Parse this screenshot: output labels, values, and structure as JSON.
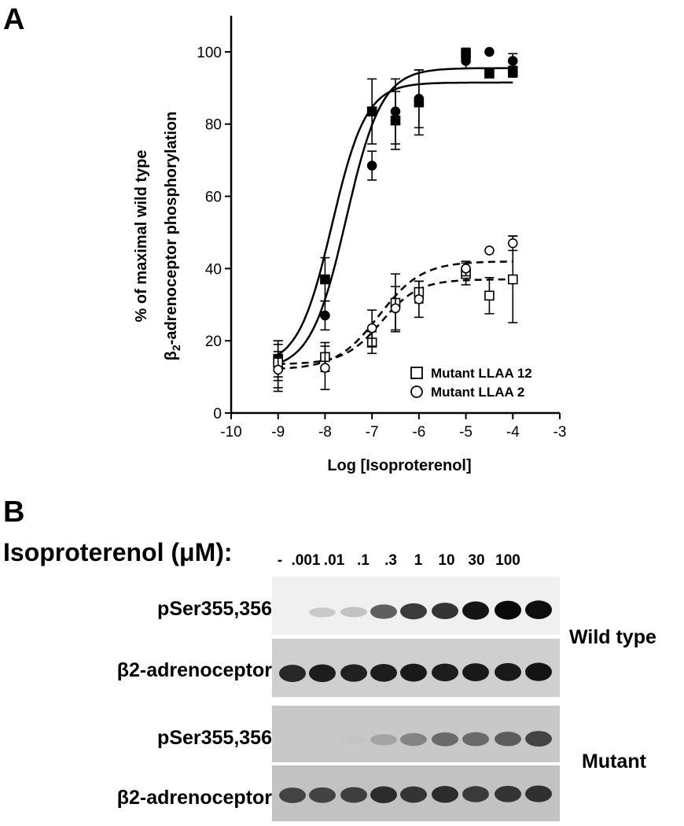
{
  "panel_a": {
    "letter": "A"
  },
  "panel_b": {
    "letter": "B",
    "title": "Isoproterenol (μM):",
    "concentrations": [
      "-",
      ".001",
      ".01",
      ".1",
      ".3",
      "1",
      "10",
      "30",
      "100"
    ],
    "rows": [
      {
        "label": "pSer355,356",
        "group": "wild-type",
        "intensities": [
          0.0,
          0.18,
          0.22,
          0.6,
          0.75,
          0.78,
          0.95,
          1.0,
          0.98
        ]
      },
      {
        "label": "β2-adrenoceptor",
        "group": "wild-type",
        "intensities": [
          0.85,
          0.9,
          0.88,
          0.9,
          0.92,
          0.9,
          0.92,
          0.92,
          0.95
        ]
      },
      {
        "label": "pSer355,356",
        "group": "mutant",
        "intensities": [
          0.0,
          0.0,
          0.05,
          0.3,
          0.45,
          0.55,
          0.55,
          0.6,
          0.7
        ]
      },
      {
        "label": "β2-adrenoceptor",
        "group": "mutant",
        "intensities": [
          0.7,
          0.7,
          0.72,
          0.82,
          0.78,
          0.82,
          0.75,
          0.78,
          0.8
        ]
      }
    ],
    "group_labels": {
      "wild_type": "Wild type",
      "mutant": "Mutant"
    }
  },
  "chart_data": {
    "type": "scatter",
    "title": "",
    "xlabel": "Log [Isoproterenol]",
    "ylabel_line1": "% of maximal wild type",
    "ylabel_line2_prefix": "β",
    "ylabel_line2_sub": "2",
    "ylabel_line2_suffix": "-adrenoceptor phosphorylation",
    "xlim": [
      -10,
      -3
    ],
    "ylim": [
      0,
      110
    ],
    "xticks": [
      -10,
      -9,
      -8,
      -7,
      -6,
      -5,
      -4,
      -3
    ],
    "yticks": [
      0,
      20,
      40,
      60,
      80,
      100
    ],
    "grid": false,
    "legend_position": "bottom-right",
    "series": [
      {
        "marker": "filled-square",
        "legend": false,
        "fit": "solid",
        "fit_params": {
          "bottom": 13,
          "top": 91.5,
          "log_ec50": -7.85,
          "hill": 1.2
        },
        "points": [
          {
            "x": -9,
            "y": 15,
            "err": 5
          },
          {
            "x": -8,
            "y": 37,
            "err": 6
          },
          {
            "x": -7,
            "y": 83.5,
            "err": 9
          },
          {
            "x": -6.5,
            "y": 81,
            "err": 8
          },
          {
            "x": -6,
            "y": 86,
            "err": 9
          },
          {
            "x": -5,
            "y": 99.5,
            "err": 1.5
          },
          {
            "x": -4.5,
            "y": 94,
            "err": 0
          },
          {
            "x": -4,
            "y": 94.5,
            "err": 1.5
          }
        ]
      },
      {
        "marker": "filled-circle",
        "legend": false,
        "fit": "solid",
        "fit_params": {
          "bottom": 12,
          "top": 95.5,
          "log_ec50": -7.55,
          "hill": 1.15
        },
        "points": [
          {
            "x": -9,
            "y": 13,
            "err": 7
          },
          {
            "x": -8,
            "y": 27,
            "err": 4
          },
          {
            "x": -7,
            "y": 68.5,
            "err": 4
          },
          {
            "x": -6.5,
            "y": 83.5,
            "err": 9
          },
          {
            "x": -6,
            "y": 87,
            "err": 8
          },
          {
            "x": -5,
            "y": 97.5,
            "err": 2
          },
          {
            "x": -4.5,
            "y": 100,
            "err": 0
          },
          {
            "x": -4,
            "y": 97.5,
            "err": 2
          }
        ]
      },
      {
        "name": "Mutant LLAA 12",
        "marker": "open-square",
        "legend": true,
        "fit": "dashed",
        "fit_params": {
          "bottom": 13.5,
          "top": 37,
          "log_ec50": -6.8,
          "hill": 1.1
        },
        "points": [
          {
            "x": -9,
            "y": 14,
            "err": 5
          },
          {
            "x": -8,
            "y": 15.5,
            "err": 4
          },
          {
            "x": -7,
            "y": 19.5,
            "err": 3
          },
          {
            "x": -6.5,
            "y": 30.5,
            "err": 8
          },
          {
            "x": -6,
            "y": 33.5,
            "err": 3
          },
          {
            "x": -5,
            "y": 38.5,
            "err": 3
          },
          {
            "x": -4.5,
            "y": 32.5,
            "err": 5
          },
          {
            "x": -4,
            "y": 37,
            "err": 12
          }
        ]
      },
      {
        "name": "Mutant LLAA 2",
        "marker": "open-circle",
        "legend": true,
        "fit": "dashed",
        "fit_params": {
          "bottom": 12,
          "top": 42,
          "log_ec50": -6.85,
          "hill": 0.95
        },
        "points": [
          {
            "x": -9,
            "y": 12,
            "err": 5
          },
          {
            "x": -8,
            "y": 12.5,
            "err": 6
          },
          {
            "x": -7,
            "y": 23.5,
            "err": 5
          },
          {
            "x": -6.5,
            "y": 29,
            "err": 6
          },
          {
            "x": -6,
            "y": 31.5,
            "err": 5
          },
          {
            "x": -5,
            "y": 40,
            "err": 2
          },
          {
            "x": -4.5,
            "y": 45,
            "err": 0
          },
          {
            "x": -4,
            "y": 47,
            "err": 2
          }
        ]
      }
    ]
  }
}
